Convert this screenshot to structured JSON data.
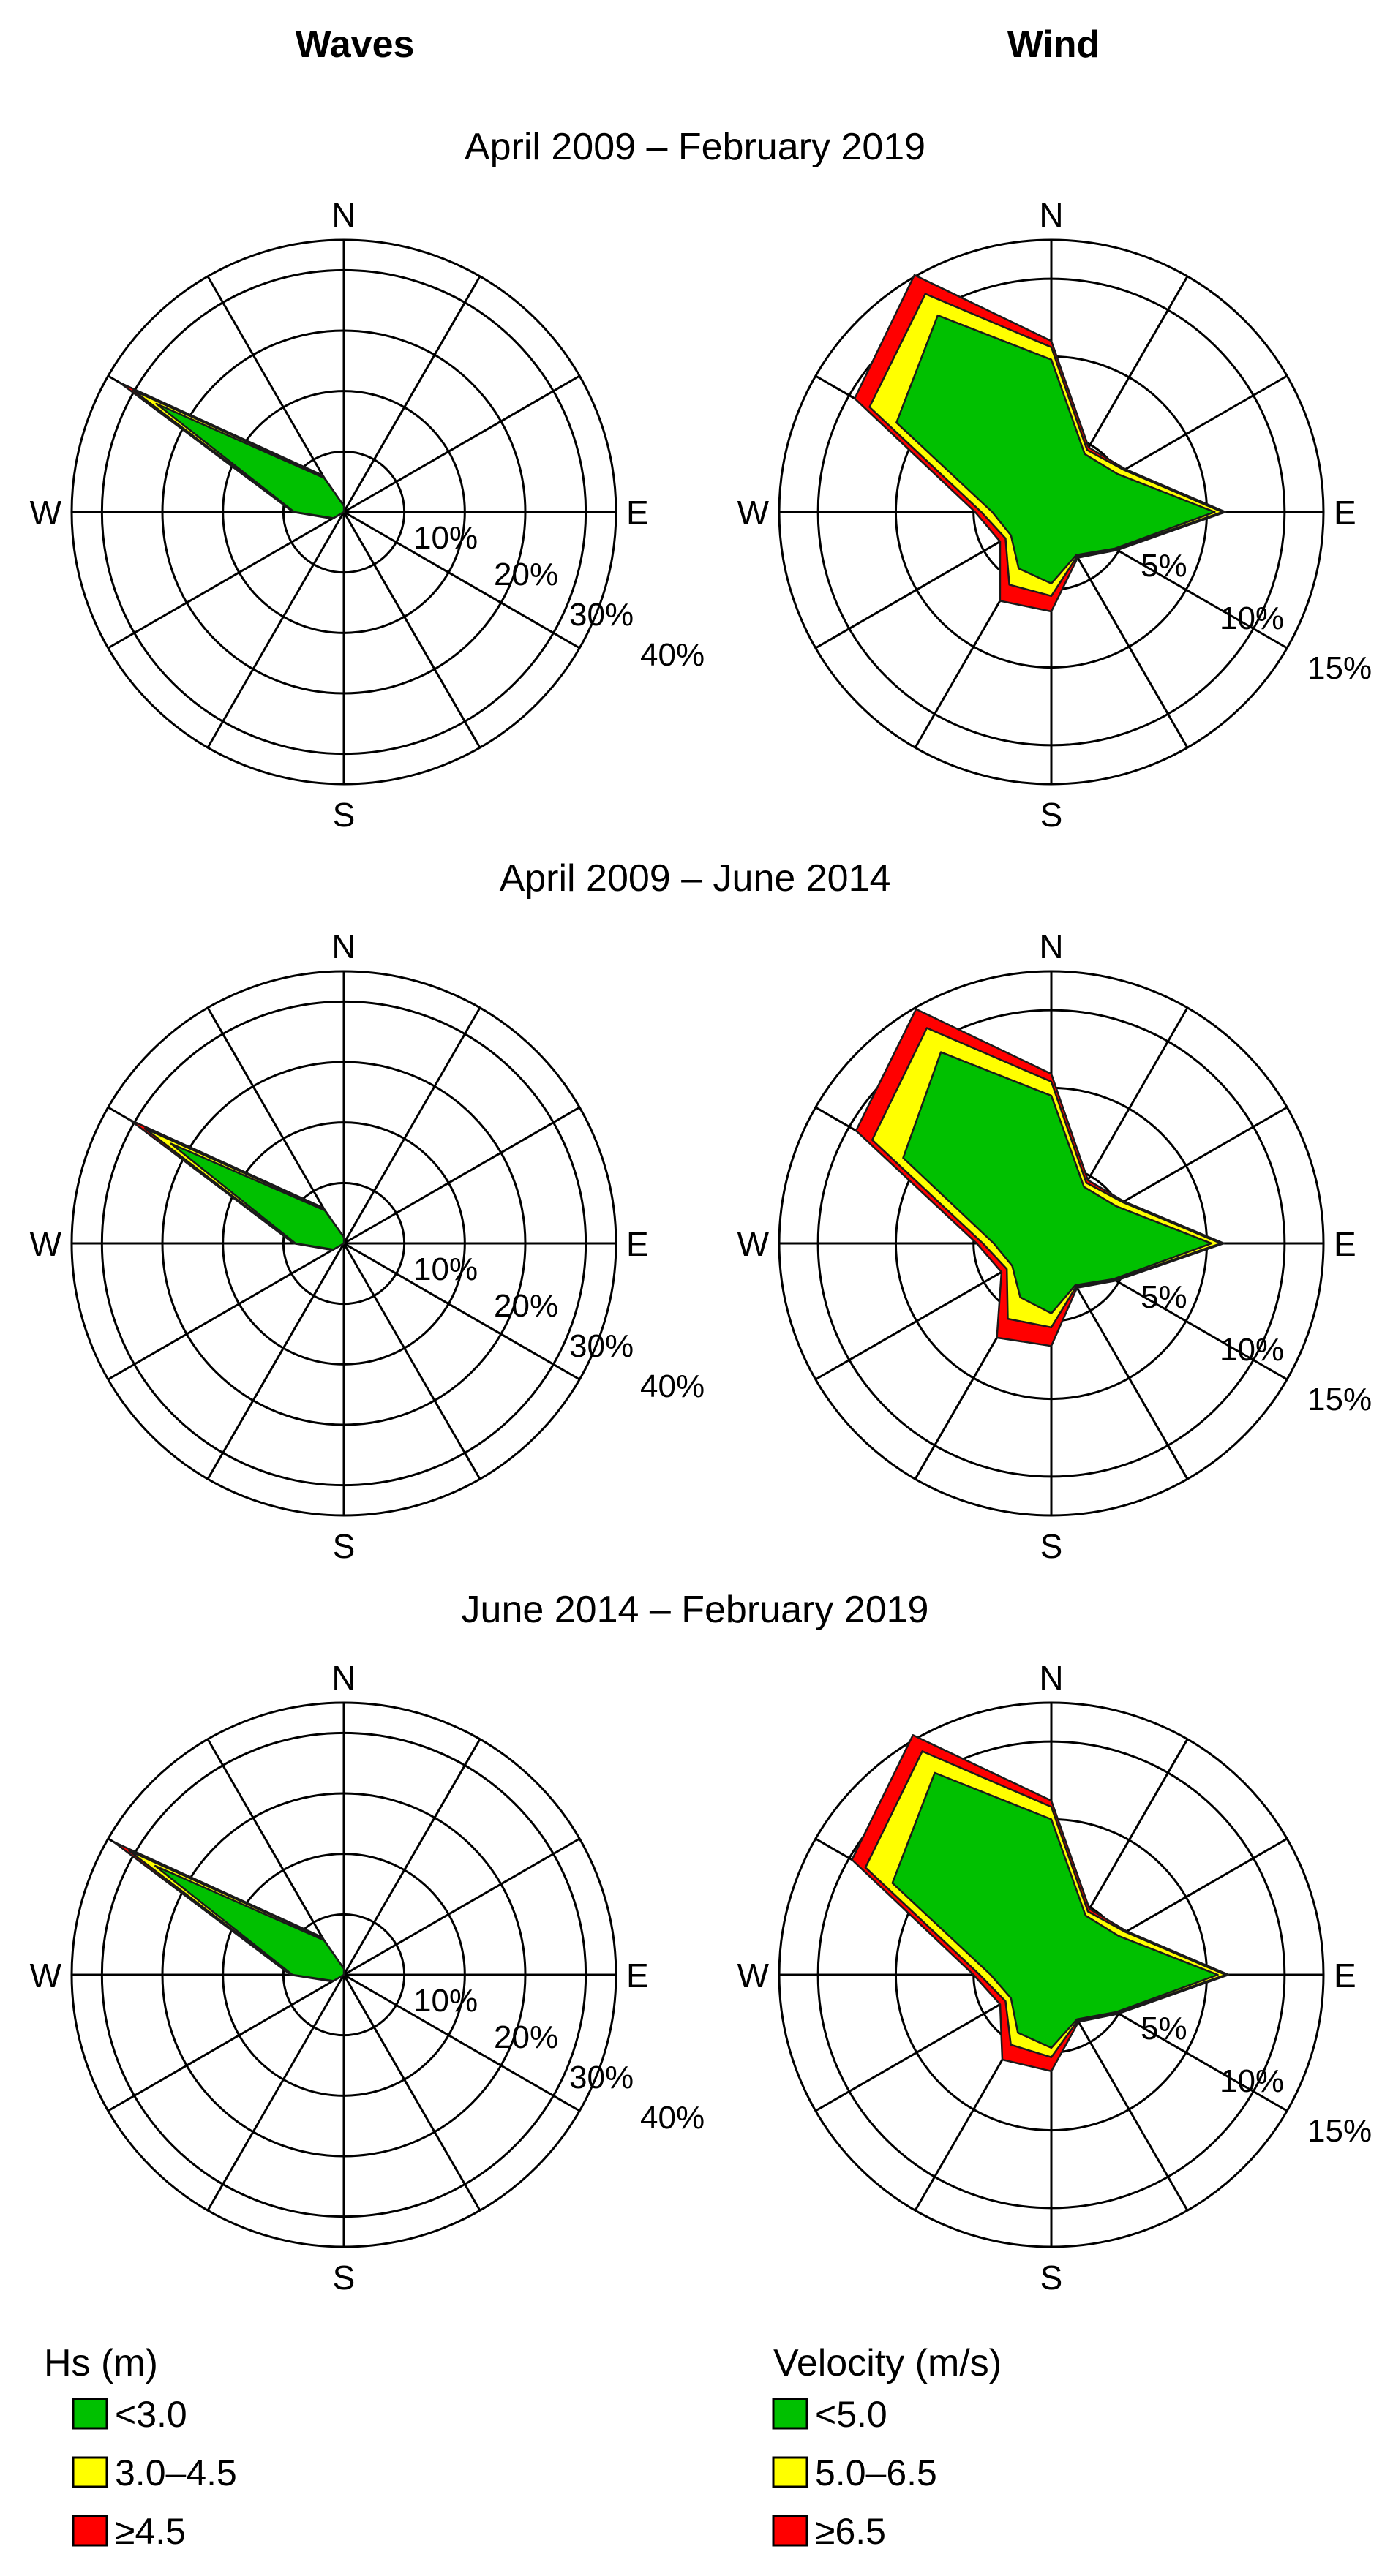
{
  "headers": {
    "waves": "Waves",
    "wind": "Wind"
  },
  "compass": {
    "n": "N",
    "e": "E",
    "s": "S",
    "w": "W"
  },
  "legends": {
    "waves": {
      "title": "Hs (m)",
      "items": [
        {
          "label": "<3.0",
          "color": "#00c000"
        },
        {
          "label": "3.0–4.5",
          "color": "#ffff00"
        },
        {
          "label": "≥4.5",
          "color": "#ff0000"
        }
      ]
    },
    "wind": {
      "title": "Velocity (m/s)",
      "items": [
        {
          "label": "<5.0",
          "color": "#00c000"
        },
        {
          "label": "5.0–6.5",
          "color": "#ffff00"
        },
        {
          "label": "≥6.5",
          "color": "#ff0000"
        }
      ]
    }
  },
  "chart_data": [
    {
      "type": "windrose",
      "variable": "waves",
      "period": "April 2009 – February 2019",
      "directions": [
        "N",
        "NNE",
        "ENE",
        "E",
        "ESE",
        "SSE",
        "S",
        "SSW",
        "WSW",
        "W",
        "WNW",
        "NNW"
      ],
      "rings": [
        10,
        20,
        30,
        40
      ],
      "rmax": 45,
      "ring_labels": [
        "10%",
        "20%",
        "30%",
        "40%"
      ],
      "series": [
        {
          "name": "<3.0",
          "values": [
            1,
            0,
            0,
            0,
            0,
            0,
            0,
            0,
            2.0,
            8.2,
            35.8,
            6.5
          ]
        },
        {
          "name": "3.0–4.5",
          "values": [
            1,
            0,
            0,
            0,
            0,
            0,
            0,
            0,
            2.1,
            8.3,
            40.2,
            6.8
          ]
        },
        {
          "name": "≥4.5",
          "values": [
            1,
            0,
            0,
            0,
            0,
            0,
            0,
            0,
            2.2,
            8.4,
            42.8,
            7.0
          ]
        }
      ]
    },
    {
      "type": "windrose",
      "variable": "wind",
      "period": "April 2009 – February 2019",
      "directions": [
        "N",
        "NNE",
        "ENE",
        "E",
        "ESE",
        "SSE",
        "S",
        "SSW",
        "WSW",
        "W",
        "WNW",
        "NNW"
      ],
      "rings": [
        5,
        10,
        15
      ],
      "rmax": 17.5,
      "ring_labels": [
        "5%",
        "10%",
        "15%"
      ],
      "series": [
        {
          "name": "<5.0",
          "values": [
            9.8,
            4.3,
            4.9,
            10.5,
            4.7,
            3.2,
            4.6,
            4.2,
            3.0,
            3.8,
            11.5,
            14.6
          ]
        },
        {
          "name": "5.0–6.5",
          "values": [
            10.6,
            4.6,
            5.4,
            11.0,
            4.8,
            3.3,
            5.4,
            5.4,
            3.4,
            4.5,
            13.5,
            16.2
          ]
        },
        {
          "name": "≥6.5",
          "values": [
            11.0,
            4.8,
            5.5,
            11.2,
            4.9,
            3.4,
            6.4,
            6.6,
            3.8,
            4.9,
            14.6,
            17.6
          ]
        }
      ]
    },
    {
      "type": "windrose",
      "variable": "waves",
      "period": "April 2009 – June 2014",
      "directions": [
        "N",
        "NNE",
        "ENE",
        "E",
        "ESE",
        "SSE",
        "S",
        "SSW",
        "WSW",
        "W",
        "WNW",
        "NNW"
      ],
      "rings": [
        10,
        20,
        30,
        40
      ],
      "rmax": 45,
      "ring_labels": [
        "10%",
        "20%",
        "30%",
        "40%"
      ],
      "series": [
        {
          "name": "<3.0",
          "values": [
            1,
            0,
            0,
            0,
            0,
            0,
            0,
            0,
            2.0,
            8.0,
            33.0,
            6.3
          ]
        },
        {
          "name": "3.0–4.5",
          "values": [
            1,
            0,
            0,
            0,
            0,
            0,
            0,
            0,
            2.1,
            8.2,
            38.0,
            6.6
          ]
        },
        {
          "name": "≥4.5",
          "values": [
            1,
            0,
            0,
            0,
            0,
            0,
            0,
            0,
            2.2,
            8.3,
            41.0,
            6.8
          ]
        }
      ]
    },
    {
      "type": "windrose",
      "variable": "wind",
      "period": "April 2009 – June 2014",
      "directions": [
        "N",
        "NNE",
        "ENE",
        "E",
        "ESE",
        "SSE",
        "S",
        "SSW",
        "WSW",
        "W",
        "WNW",
        "NNW"
      ],
      "rings": [
        5,
        10,
        15
      ],
      "rmax": 17.5,
      "ring_labels": [
        "5%",
        "10%",
        "15%"
      ],
      "series": [
        {
          "name": "<5.0",
          "values": [
            9.5,
            4.2,
            4.8,
            10.3,
            4.6,
            3.1,
            4.5,
            4.0,
            2.9,
            3.7,
            11.0,
            14.2
          ]
        },
        {
          "name": "5.0–6.5",
          "values": [
            10.4,
            4.5,
            5.3,
            10.9,
            4.7,
            3.2,
            5.4,
            5.6,
            3.3,
            4.4,
            13.3,
            16.0
          ]
        },
        {
          "name": "≥6.5",
          "values": [
            10.9,
            4.7,
            5.4,
            11.1,
            4.8,
            3.3,
            6.6,
            7.0,
            3.7,
            4.8,
            14.5,
            17.4
          ]
        }
      ]
    },
    {
      "type": "windrose",
      "variable": "waves",
      "period": "June 2014 – February 2019",
      "directions": [
        "N",
        "NNE",
        "ENE",
        "E",
        "ESE",
        "SSE",
        "S",
        "SSW",
        "WSW",
        "W",
        "WNW",
        "NNW"
      ],
      "rings": [
        10,
        20,
        30,
        40
      ],
      "rmax": 45,
      "ring_labels": [
        "10%",
        "20%",
        "30%",
        "40%"
      ],
      "series": [
        {
          "name": "<3.0",
          "values": [
            1,
            0,
            0,
            0,
            0,
            0,
            0,
            0,
            2.0,
            8.5,
            36.0,
            6.6
          ]
        },
        {
          "name": "3.0–4.5",
          "values": [
            1,
            0,
            0,
            0,
            0,
            0,
            0,
            0,
            2.1,
            8.6,
            41.0,
            7.0
          ]
        },
        {
          "name": "≥4.5",
          "values": [
            1,
            0,
            0,
            0,
            0,
            0,
            0,
            0,
            2.2,
            8.8,
            44.0,
            7.2
          ]
        }
      ]
    },
    {
      "type": "windrose",
      "variable": "wind",
      "period": "June 2014 – February 2019",
      "directions": [
        "N",
        "NNE",
        "ENE",
        "E",
        "ESE",
        "SSE",
        "S",
        "SSW",
        "WSW",
        "W",
        "WNW",
        "NNW"
      ],
      "rings": [
        5,
        10,
        15
      ],
      "rmax": 17.5,
      "ring_labels": [
        "5%",
        "10%",
        "15%"
      ],
      "series": [
        {
          "name": "<5.0",
          "values": [
            10.0,
            4.4,
            5.0,
            10.7,
            4.8,
            3.3,
            4.7,
            4.3,
            3.0,
            3.9,
            11.8,
            15.0
          ]
        },
        {
          "name": "5.0–6.5",
          "values": [
            10.8,
            4.7,
            5.5,
            11.2,
            4.9,
            3.4,
            5.3,
            5.2,
            3.4,
            4.6,
            13.8,
            16.6
          ]
        },
        {
          "name": "≥6.5",
          "values": [
            11.2,
            4.9,
            5.6,
            11.4,
            5.0,
            3.5,
            6.2,
            6.3,
            3.8,
            5.0,
            14.8,
            17.8
          ]
        }
      ]
    }
  ]
}
